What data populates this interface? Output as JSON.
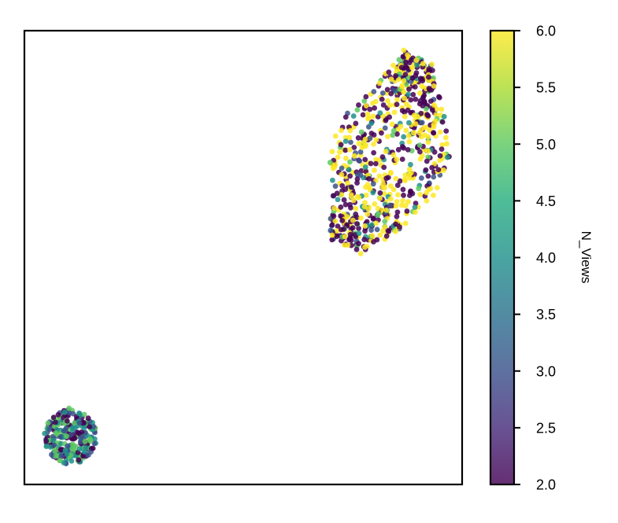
{
  "chart_data": {
    "type": "scatter",
    "title": "",
    "xlabel": "",
    "ylabel": "",
    "axes_ticks_visible": false,
    "grid": false,
    "colormap": "viridis",
    "colorbar": {
      "label": "N_Views",
      "min": 2.0,
      "max": 6.0,
      "ticks": [
        "2.0",
        "2.5",
        "3.0",
        "3.5",
        "4.0",
        "4.5",
        "5.0",
        "5.5",
        "6.0"
      ]
    },
    "clusters": [
      {
        "name": "",
        "shape": "disc",
        "center": [
          0.105,
          0.105
        ],
        "radius": [
          0.06,
          0.06
        ],
        "n_points": 280,
        "color_values": [
          2,
          3,
          4,
          5
        ]
      },
      {
        "name": "",
        "shape": "elongated",
        "center": [
          0.855,
          0.665
        ],
        "extent": {
          "x": [
            0.65,
            0.955
          ],
          "y": [
            0.5,
            0.955
          ]
        },
        "n_points": 750,
        "color_values": [
          2,
          3,
          4,
          5,
          6
        ]
      }
    ]
  }
}
